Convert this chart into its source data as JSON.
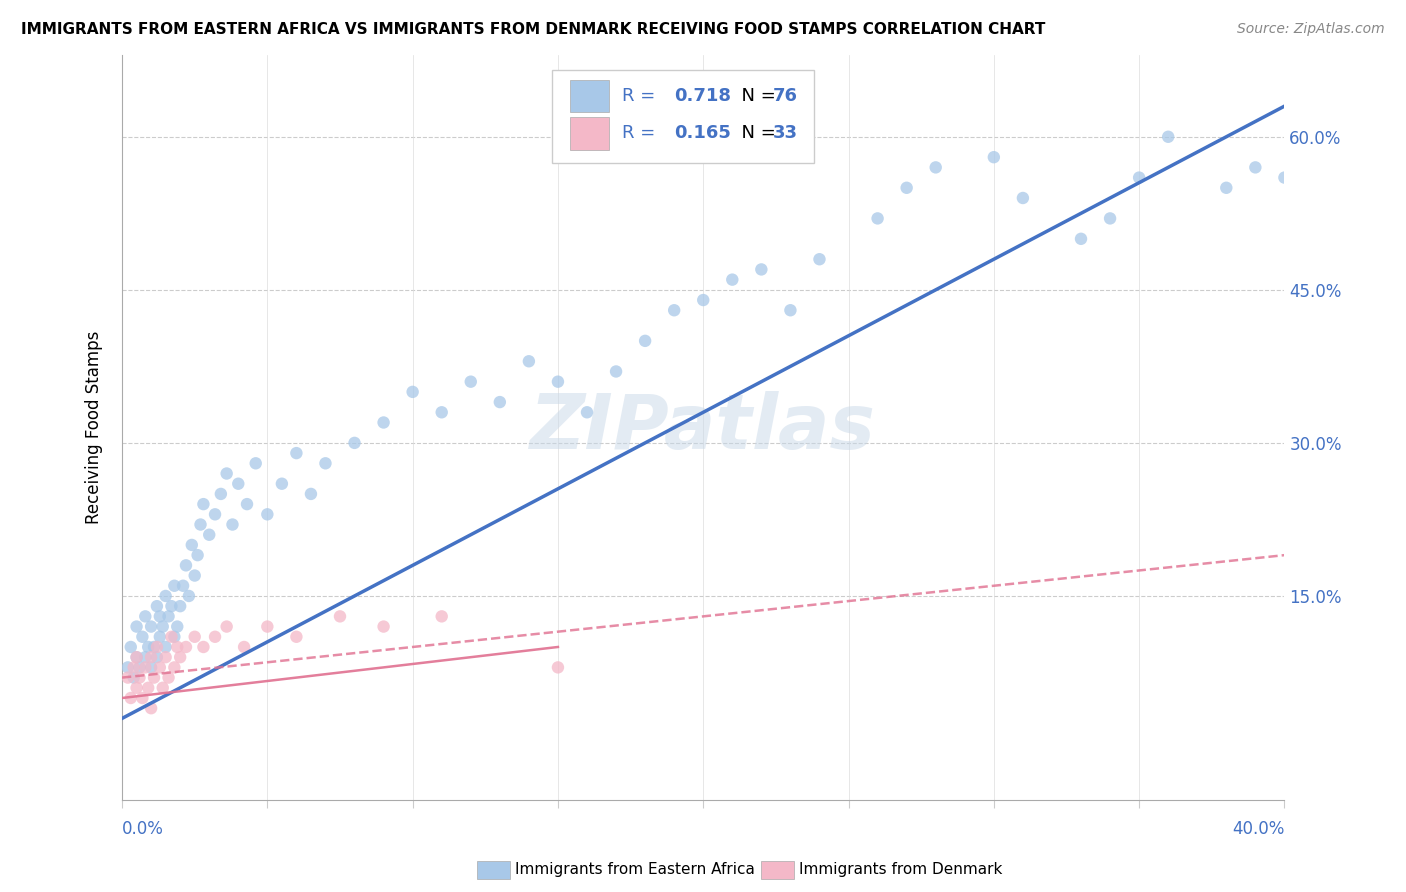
{
  "title": "IMMIGRANTS FROM EASTERN AFRICA VS IMMIGRANTS FROM DENMARK RECEIVING FOOD STAMPS CORRELATION CHART",
  "source": "Source: ZipAtlas.com",
  "ylabel": "Receiving Food Stamps",
  "right_yticks": [
    0.15,
    0.3,
    0.45,
    0.6
  ],
  "right_yticklabels": [
    "15.0%",
    "30.0%",
    "45.0%",
    "60.0%"
  ],
  "xlim": [
    0.0,
    0.4
  ],
  "ylim": [
    -0.05,
    0.68
  ],
  "legend_r1": "R = 0.718",
  "legend_n1": "N = 76",
  "legend_r2": "R = 0.165",
  "legend_n2": "N = 33",
  "color_blue": "#a8c8e8",
  "color_pink": "#f4b8c8",
  "color_blue_line": "#4472c4",
  "color_pink_line": "#e07090",
  "color_r_value": "#4472c4",
  "watermark": "ZIPatlas",
  "blue_scatter_x": [
    0.002,
    0.003,
    0.004,
    0.005,
    0.005,
    0.006,
    0.007,
    0.008,
    0.008,
    0.009,
    0.01,
    0.01,
    0.011,
    0.012,
    0.012,
    0.013,
    0.013,
    0.014,
    0.015,
    0.015,
    0.016,
    0.017,
    0.018,
    0.018,
    0.019,
    0.02,
    0.021,
    0.022,
    0.023,
    0.024,
    0.025,
    0.026,
    0.027,
    0.028,
    0.03,
    0.032,
    0.034,
    0.036,
    0.038,
    0.04,
    0.043,
    0.046,
    0.05,
    0.055,
    0.06,
    0.065,
    0.07,
    0.08,
    0.09,
    0.1,
    0.11,
    0.12,
    0.13,
    0.14,
    0.15,
    0.16,
    0.17,
    0.18,
    0.19,
    0.2,
    0.21,
    0.22,
    0.23,
    0.24,
    0.26,
    0.27,
    0.28,
    0.3,
    0.31,
    0.33,
    0.34,
    0.35,
    0.36,
    0.38,
    0.39,
    0.4
  ],
  "blue_scatter_y": [
    0.08,
    0.1,
    0.07,
    0.09,
    0.12,
    0.08,
    0.11,
    0.09,
    0.13,
    0.1,
    0.08,
    0.12,
    0.1,
    0.09,
    0.14,
    0.11,
    0.13,
    0.12,
    0.1,
    0.15,
    0.13,
    0.14,
    0.11,
    0.16,
    0.12,
    0.14,
    0.16,
    0.18,
    0.15,
    0.2,
    0.17,
    0.19,
    0.22,
    0.24,
    0.21,
    0.23,
    0.25,
    0.27,
    0.22,
    0.26,
    0.24,
    0.28,
    0.23,
    0.26,
    0.29,
    0.25,
    0.28,
    0.3,
    0.32,
    0.35,
    0.33,
    0.36,
    0.34,
    0.38,
    0.36,
    0.33,
    0.37,
    0.4,
    0.43,
    0.44,
    0.46,
    0.47,
    0.43,
    0.48,
    0.52,
    0.55,
    0.57,
    0.58,
    0.54,
    0.5,
    0.52,
    0.56,
    0.6,
    0.55,
    0.57,
    0.56
  ],
  "pink_scatter_x": [
    0.002,
    0.003,
    0.004,
    0.005,
    0.005,
    0.006,
    0.007,
    0.008,
    0.009,
    0.01,
    0.01,
    0.011,
    0.012,
    0.013,
    0.014,
    0.015,
    0.016,
    0.017,
    0.018,
    0.019,
    0.02,
    0.022,
    0.025,
    0.028,
    0.032,
    0.036,
    0.042,
    0.05,
    0.06,
    0.075,
    0.09,
    0.11,
    0.15
  ],
  "pink_scatter_y": [
    0.07,
    0.05,
    0.08,
    0.06,
    0.09,
    0.07,
    0.05,
    0.08,
    0.06,
    0.09,
    0.04,
    0.07,
    0.1,
    0.08,
    0.06,
    0.09,
    0.07,
    0.11,
    0.08,
    0.1,
    0.09,
    0.1,
    0.11,
    0.1,
    0.11,
    0.12,
    0.1,
    0.12,
    0.11,
    0.13,
    0.12,
    0.13,
    0.08
  ]
}
